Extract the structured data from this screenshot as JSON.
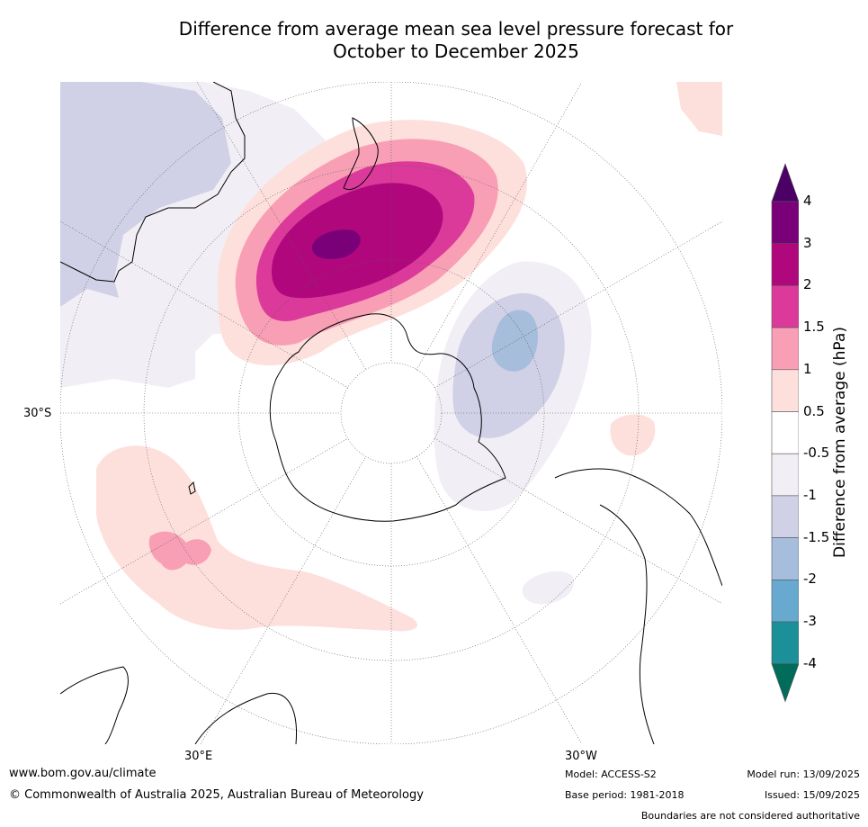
{
  "title": {
    "line1": "Difference from average mean sea level pressure forecast for",
    "line2": "October to December 2025"
  },
  "map": {
    "projection": "south-polar-stereographic",
    "lat_labels": [
      "30°S"
    ],
    "lon_labels": [
      "30°E",
      "30°W"
    ]
  },
  "colorbar": {
    "title": "Difference from average (hPa)",
    "ticks": [
      "4",
      "3",
      "2",
      "1.5",
      "1",
      "0.5",
      "-0.5",
      "-1",
      "-1.5",
      "-2",
      "-3",
      "-4"
    ],
    "bins": [
      {
        "label": "above 4",
        "color": "#4b0066"
      },
      {
        "label": "3 to 4",
        "color": "#7a007a"
      },
      {
        "label": "2 to 3",
        "color": "#b0087c"
      },
      {
        "label": "1.5 to 2",
        "color": "#dc3a9a"
      },
      {
        "label": "1 to 1.5",
        "color": "#f89fb6"
      },
      {
        "label": "0.5 to 1",
        "color": "#fde0dc"
      },
      {
        "label": "-0.5 to 0.5",
        "color": "#ffffff"
      },
      {
        "label": "-1 to -0.5",
        "color": "#f2eef5"
      },
      {
        "label": "-1.5 to -1",
        "color": "#d0d1e6"
      },
      {
        "label": "-2 to -1.5",
        "color": "#a6bddb"
      },
      {
        "label": "-3 to -2",
        "color": "#67a9cf"
      },
      {
        "label": "-4 to -3",
        "color": "#1c9099"
      },
      {
        "label": "below -4",
        "color": "#016c59"
      }
    ]
  },
  "footer": {
    "url": "www.bom.gov.au/climate",
    "copyright": "© Commonwealth of Australia 2025, Australian Bureau of Meteorology",
    "model": "Model: ACCESS-S2",
    "base_period": "Base period: 1981-2018",
    "model_run": "Model run: 13/09/2025",
    "issued": "Issued: 15/09/2025",
    "disclaimer": "Boundaries are not considered authoritative"
  }
}
